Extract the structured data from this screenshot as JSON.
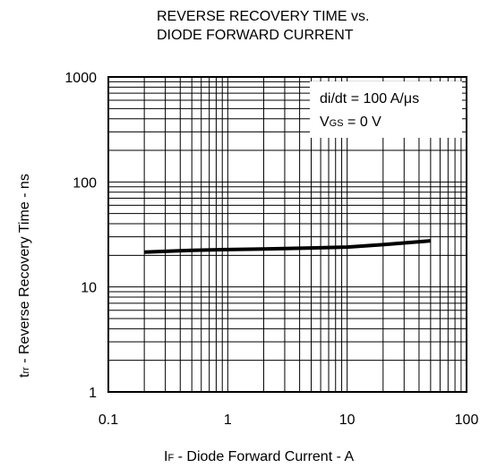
{
  "chart_data": {
    "type": "line",
    "title_lines": [
      "REVERSE RECOVERY TIME vs.",
      "DIODE FORWARD CURRENT"
    ],
    "xlabel": {
      "symbol": "I",
      "subscript": "F",
      "text": " - Diode Forward Current - A"
    },
    "ylabel": {
      "symbol": "t",
      "subscript": "rr",
      "text": " - Reverse Recovery Time - ns"
    },
    "x_scale": "log",
    "y_scale": "log",
    "xlim": [
      0.1,
      100
    ],
    "ylim": [
      1,
      1000
    ],
    "x_ticks": [
      0.1,
      1,
      10,
      100
    ],
    "x_tick_labels": [
      "0.1",
      "1",
      "10",
      "100"
    ],
    "y_ticks": [
      1,
      10,
      100,
      1000
    ],
    "y_tick_labels": [
      "1",
      "10",
      "100",
      "1000"
    ],
    "grid": true,
    "legend_box": {
      "position": "top-right",
      "line1": "di/dt = 100 A/μs",
      "line2": {
        "symbol": "V",
        "subscript": "GS",
        "text": " = 0 V"
      }
    },
    "series": [
      {
        "x": [
          0.2,
          0.5,
          1,
          2,
          5,
          10,
          20,
          50
        ],
        "y": [
          21.5,
          22.3,
          22.7,
          23.0,
          23.5,
          24.0,
          25.3,
          27.5
        ]
      }
    ]
  }
}
